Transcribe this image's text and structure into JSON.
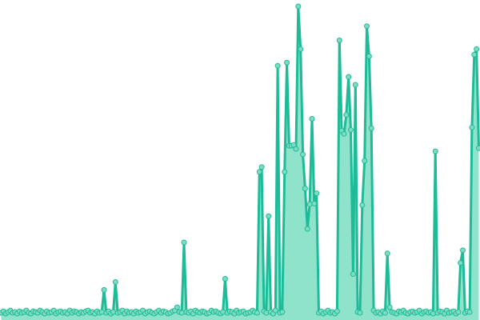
{
  "chart_data": {
    "type": "line",
    "title": "",
    "xlabel": "",
    "ylabel": "",
    "axes_visible": false,
    "grid": false,
    "legend": "none",
    "area_fill": true,
    "markers": true,
    "colors": {
      "line": "#1dbb97",
      "fill": "#8fe3cb",
      "marker_fill": "#7fdcc2",
      "marker_stroke": "#1dbb97"
    },
    "ylim": [
      0,
      396
    ],
    "values": [
      5,
      7,
      4,
      6,
      8,
      5,
      6,
      4,
      7,
      5,
      6,
      8,
      5,
      4,
      7,
      6,
      5,
      8,
      6,
      4,
      7,
      5,
      6,
      8,
      4,
      6,
      7,
      5,
      6,
      4,
      8,
      5,
      7,
      6,
      4,
      6,
      5,
      7,
      8,
      5,
      6,
      4,
      7,
      5,
      6,
      34,
      5,
      7,
      4,
      6,
      44,
      5,
      6,
      8,
      4,
      7,
      5,
      6,
      4,
      7,
      5,
      6,
      8,
      4,
      6,
      7,
      5,
      4,
      6,
      8,
      5,
      7,
      6,
      4,
      5,
      7,
      8,
      12,
      6,
      5,
      94,
      6,
      5,
      7,
      4,
      8,
      6,
      5,
      7,
      6,
      4,
      5,
      8,
      6,
      7,
      5,
      4,
      6,
      48,
      5,
      7,
      6,
      4,
      8,
      5,
      6,
      7,
      4,
      5,
      6,
      8,
      6,
      5,
      183,
      189,
      7,
      5,
      127,
      6,
      4,
      8,
      317,
      5,
      6,
      183,
      321,
      216,
      216,
      217,
      212,
      392,
      338,
      205,
      162,
      111,
      142,
      250,
      143,
      156,
      5,
      7,
      4,
      6,
      8,
      5,
      6,
      4,
      7,
      349,
      235,
      231,
      255,
      303,
      236,
      54,
      293,
      6,
      5,
      141,
      197,
      367,
      329,
      238,
      8,
      5,
      6,
      4,
      7,
      5,
      80,
      12,
      6,
      5,
      4,
      7,
      6,
      8,
      5,
      4,
      6,
      7,
      5,
      6,
      8,
      4,
      6,
      7,
      5,
      6,
      4,
      209,
      5,
      7,
      6,
      4,
      8,
      5,
      6,
      7,
      4,
      6,
      68,
      84,
      5,
      7,
      6,
      239,
      331,
      338,
      213
    ]
  }
}
